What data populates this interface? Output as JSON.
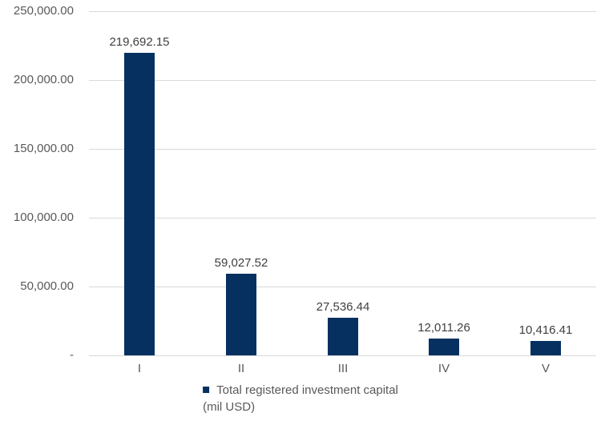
{
  "chart_data": {
    "type": "bar",
    "categories": [
      "I",
      "II",
      "III",
      "IV",
      "V"
    ],
    "values": [
      219692.15,
      59027.52,
      27536.44,
      12011.26,
      10416.41
    ],
    "value_labels": [
      "219,692.15",
      "59,027.52",
      "27,536.44",
      "12,011.26",
      "10,416.41"
    ],
    "series": [
      {
        "name": "Total registered investment capital (mil USD)",
        "values": [
          219692.15,
          59027.52,
          27536.44,
          12011.26,
          10416.41
        ]
      }
    ],
    "title": "",
    "xlabel": "",
    "ylabel": "",
    "ylim": [
      0,
      250000
    ],
    "grid": true,
    "legend_position": "bottom-center",
    "y_ticks": [
      {
        "value": 250000,
        "label": "250,000.00"
      },
      {
        "value": 200000,
        "label": "200,000.00"
      },
      {
        "value": 150000,
        "label": "150,000.00"
      },
      {
        "value": 100000,
        "label": "100,000.00"
      },
      {
        "value": 50000,
        "label": "50,000.00"
      },
      {
        "value": 0,
        "label": "-"
      }
    ],
    "legend": {
      "lines": [
        "Total registered investment capital",
        "(mil USD)"
      ]
    },
    "colors": {
      "bar": "#053060",
      "gridline": "#d9d9d9",
      "axis_line": "#d9d9d9",
      "tick_text": "#595959",
      "data_label_text": "#404040",
      "legend_text": "#595959",
      "background": "#ffffff"
    }
  }
}
